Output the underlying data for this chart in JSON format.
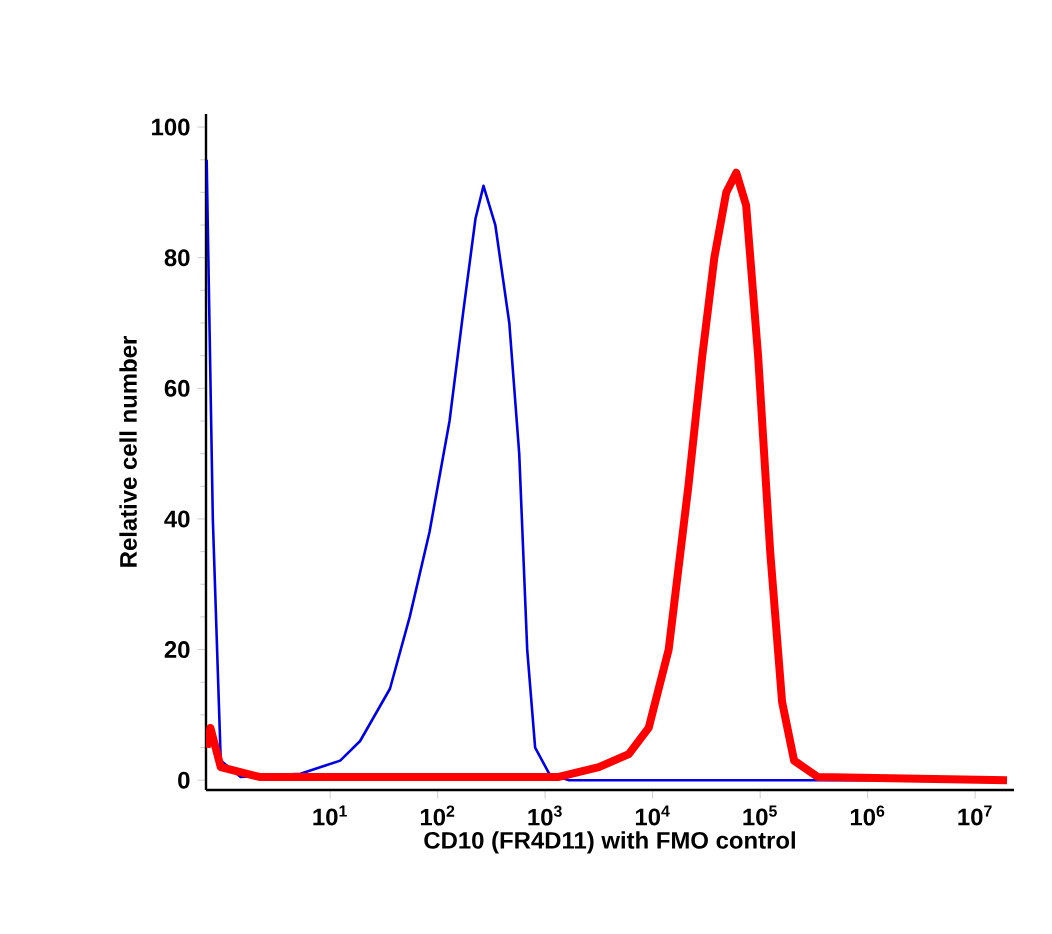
{
  "chart_data": {
    "type": "line",
    "xlabel": "CD10 (FR4D11) with FMO control",
    "ylabel": "Relative cell number",
    "log": "x",
    "xlim": [
      0.7,
      23000000
    ],
    "ylim": [
      -1.5,
      102
    ],
    "xticks": [
      {
        "value": 10,
        "label": "10$^{1}$"
      },
      {
        "value": 100,
        "label": "10$^{2}$"
      },
      {
        "value": 1000,
        "label": "10$^{3}$"
      },
      {
        "value": 10000,
        "label": "10$^{4}$"
      },
      {
        "value": 100000,
        "label": "10$^{5}$"
      },
      {
        "value": 1000000,
        "label": "10$^{6}$"
      },
      {
        "value": 10000000,
        "label": "10$^{7}$"
      }
    ],
    "yticks": [
      0,
      20,
      40,
      60,
      80,
      100
    ],
    "grid": false,
    "marker": "none",
    "series": [
      {
        "color": "#0000e6",
        "x": [
          0.71,
          0.81,
          0.96,
          1.47,
          5.3,
          12.4,
          19,
          36,
          55,
          84,
          129,
          174,
          225,
          267,
          344,
          464,
          574,
          681,
          807,
          1090,
          1670,
          16000000
        ],
        "values": [
          95,
          40,
          3,
          0.5,
          1,
          3,
          6,
          14,
          25,
          38,
          55,
          72,
          86,
          91,
          85,
          70,
          50,
          20,
          5,
          1,
          0,
          0
        ]
      },
      {
        "color": "#ff0000",
        "x": [
          0.71,
          0.77,
          0.96,
          2.2,
          1340,
          3160,
          6000,
          9180,
          14100,
          21500,
          29000,
          37500,
          48400,
          60000,
          74100,
          95700,
          124000,
          160000,
          207000,
          344000,
          19800000
        ],
        "values": [
          5,
          8,
          2,
          0.5,
          0.5,
          2,
          4,
          8,
          20,
          45,
          65,
          80,
          90,
          93,
          88,
          65,
          35,
          12,
          3,
          0.5,
          0
        ]
      }
    ]
  }
}
